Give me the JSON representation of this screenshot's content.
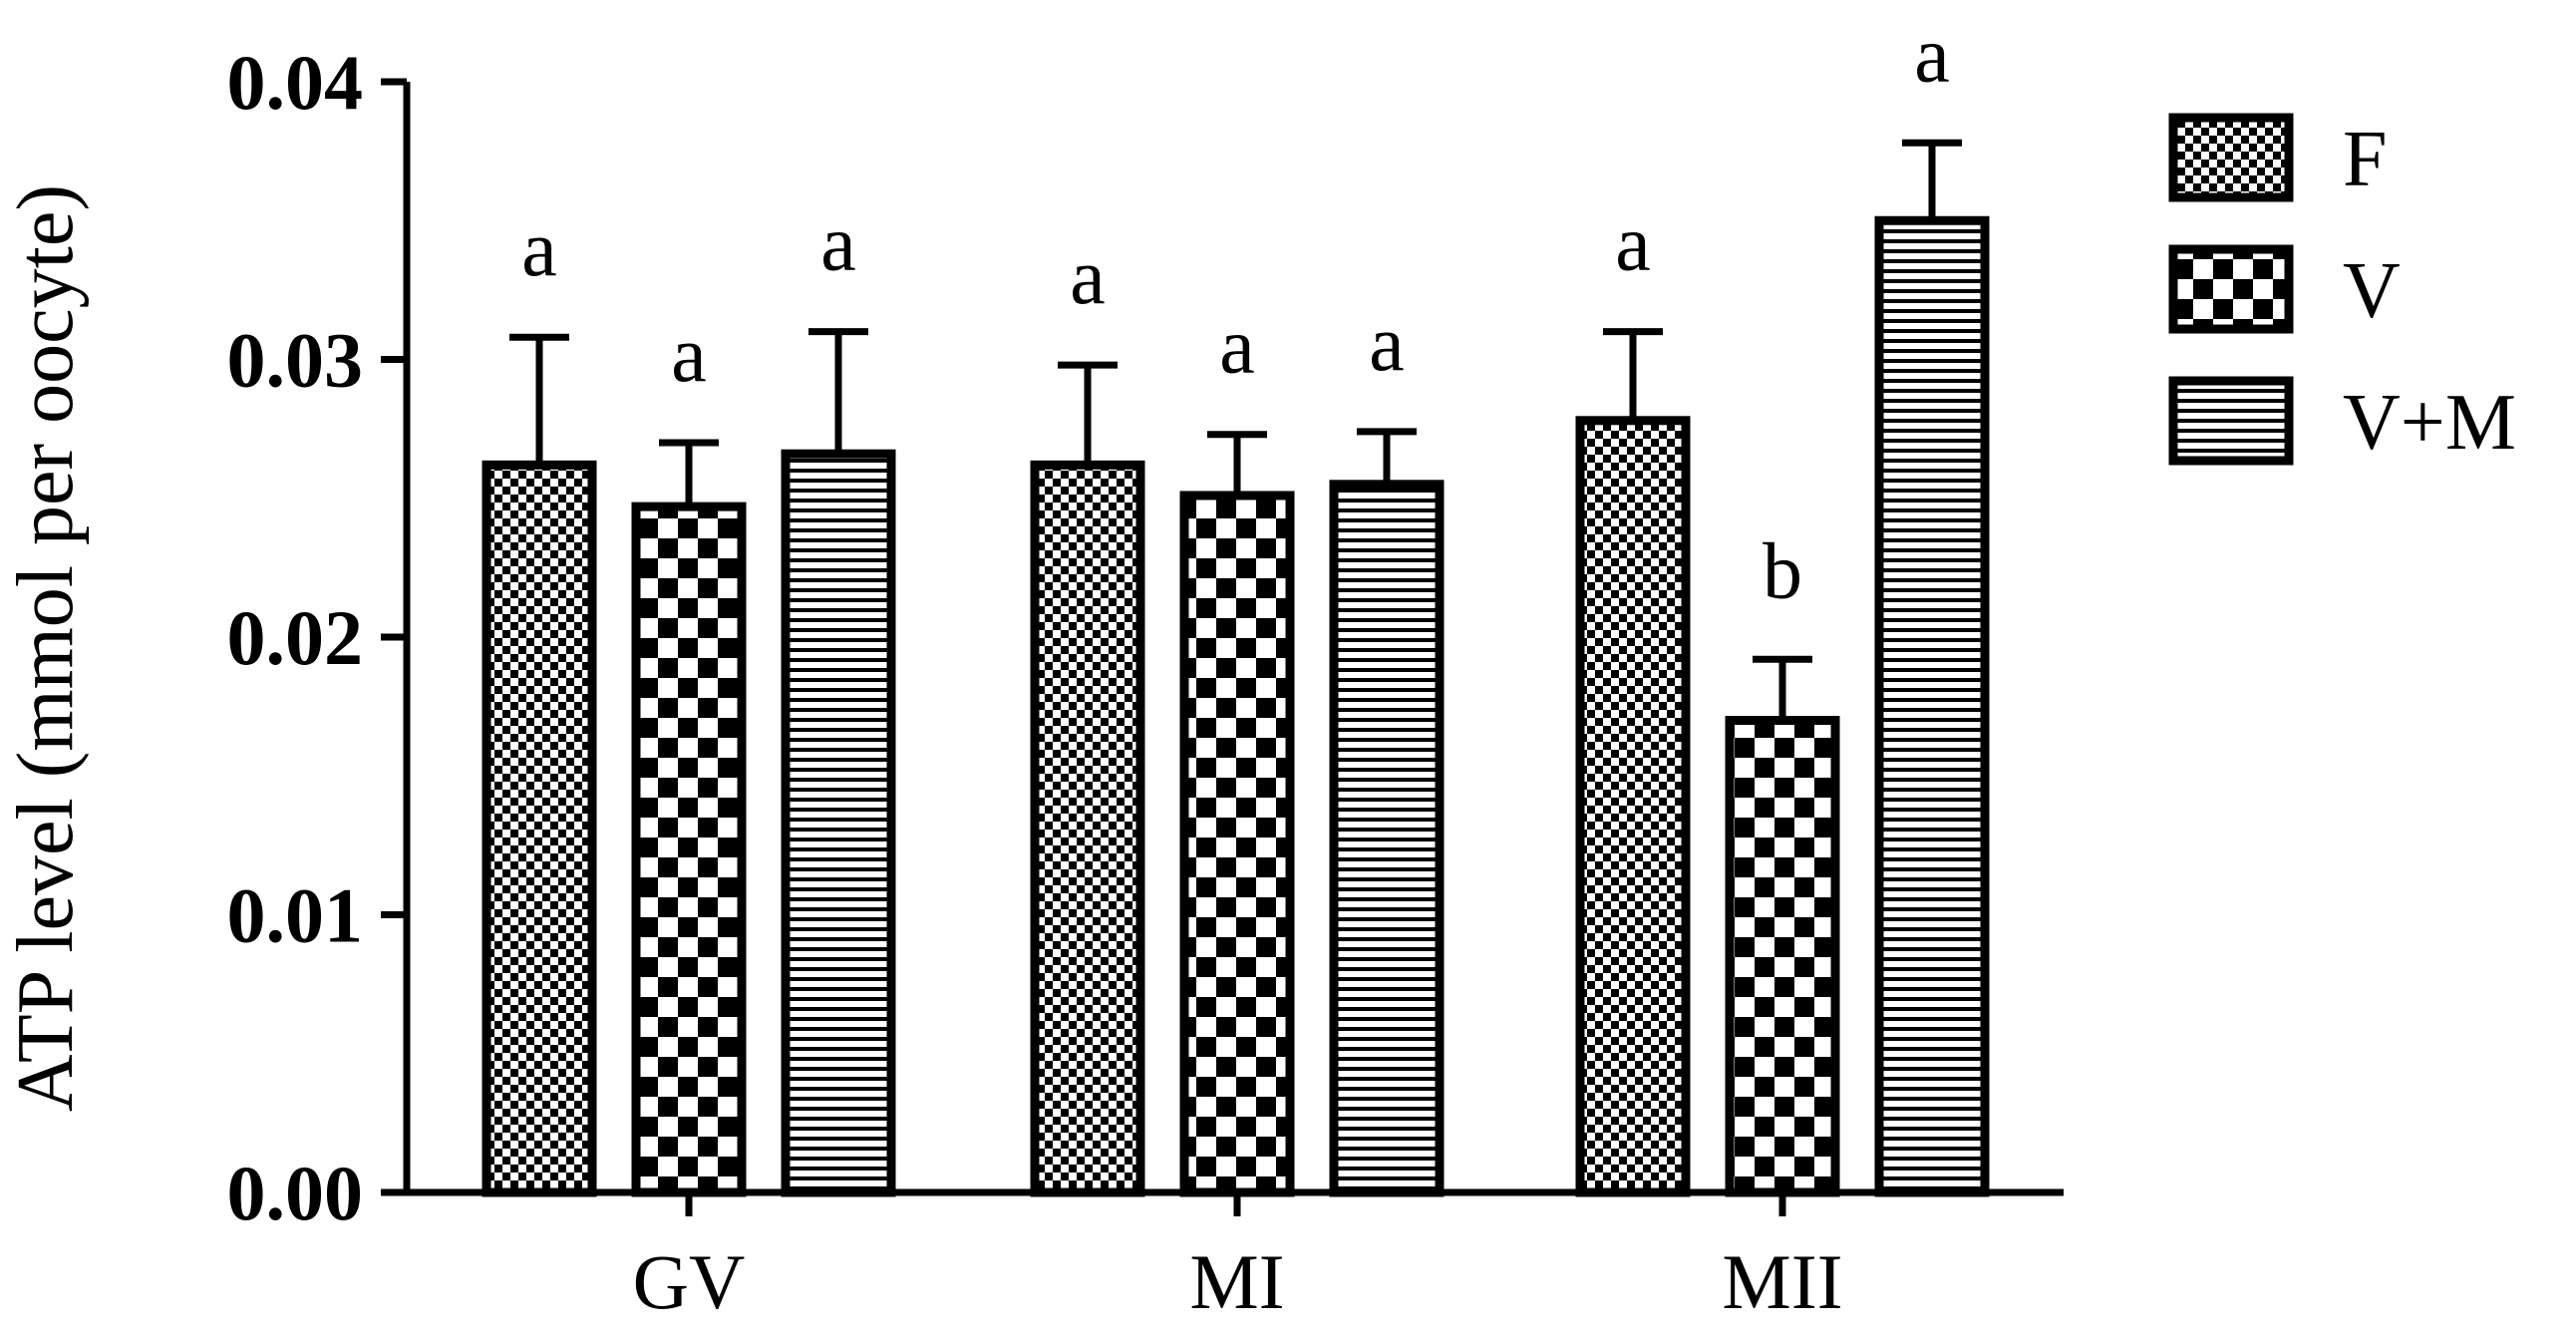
{
  "chart_data": {
    "type": "bar",
    "title": "",
    "xlabel": "",
    "ylabel": "ATP level (mmol per oocyte)",
    "ylim": [
      0,
      0.04
    ],
    "yticks": [
      "0.00",
      "0.01",
      "0.02",
      "0.03",
      "0.04"
    ],
    "categories": [
      "GV",
      "MI",
      "MII"
    ],
    "legend_position": "right",
    "series": [
      {
        "name": "F",
        "pattern": "fine-checker",
        "values": [
          0.0262,
          0.0262,
          0.0278
        ],
        "errors": [
          0.0046,
          0.0036,
          0.0032
        ],
        "labels": [
          "a",
          "a",
          "a"
        ]
      },
      {
        "name": "V",
        "pattern": "coarse-checker",
        "values": [
          0.0247,
          0.0251,
          0.017
        ],
        "errors": [
          0.0023,
          0.0022,
          0.0022
        ],
        "labels": [
          "a",
          "a",
          "b"
        ]
      },
      {
        "name": "V+M",
        "pattern": "horizontal-stripes",
        "values": [
          0.0266,
          0.0255,
          0.035
        ],
        "errors": [
          0.0044,
          0.0019,
          0.0028
        ],
        "labels": [
          "a",
          "a",
          "a"
        ]
      }
    ],
    "colors": {
      "ink": "#000000",
      "background": "#ffffff"
    }
  }
}
